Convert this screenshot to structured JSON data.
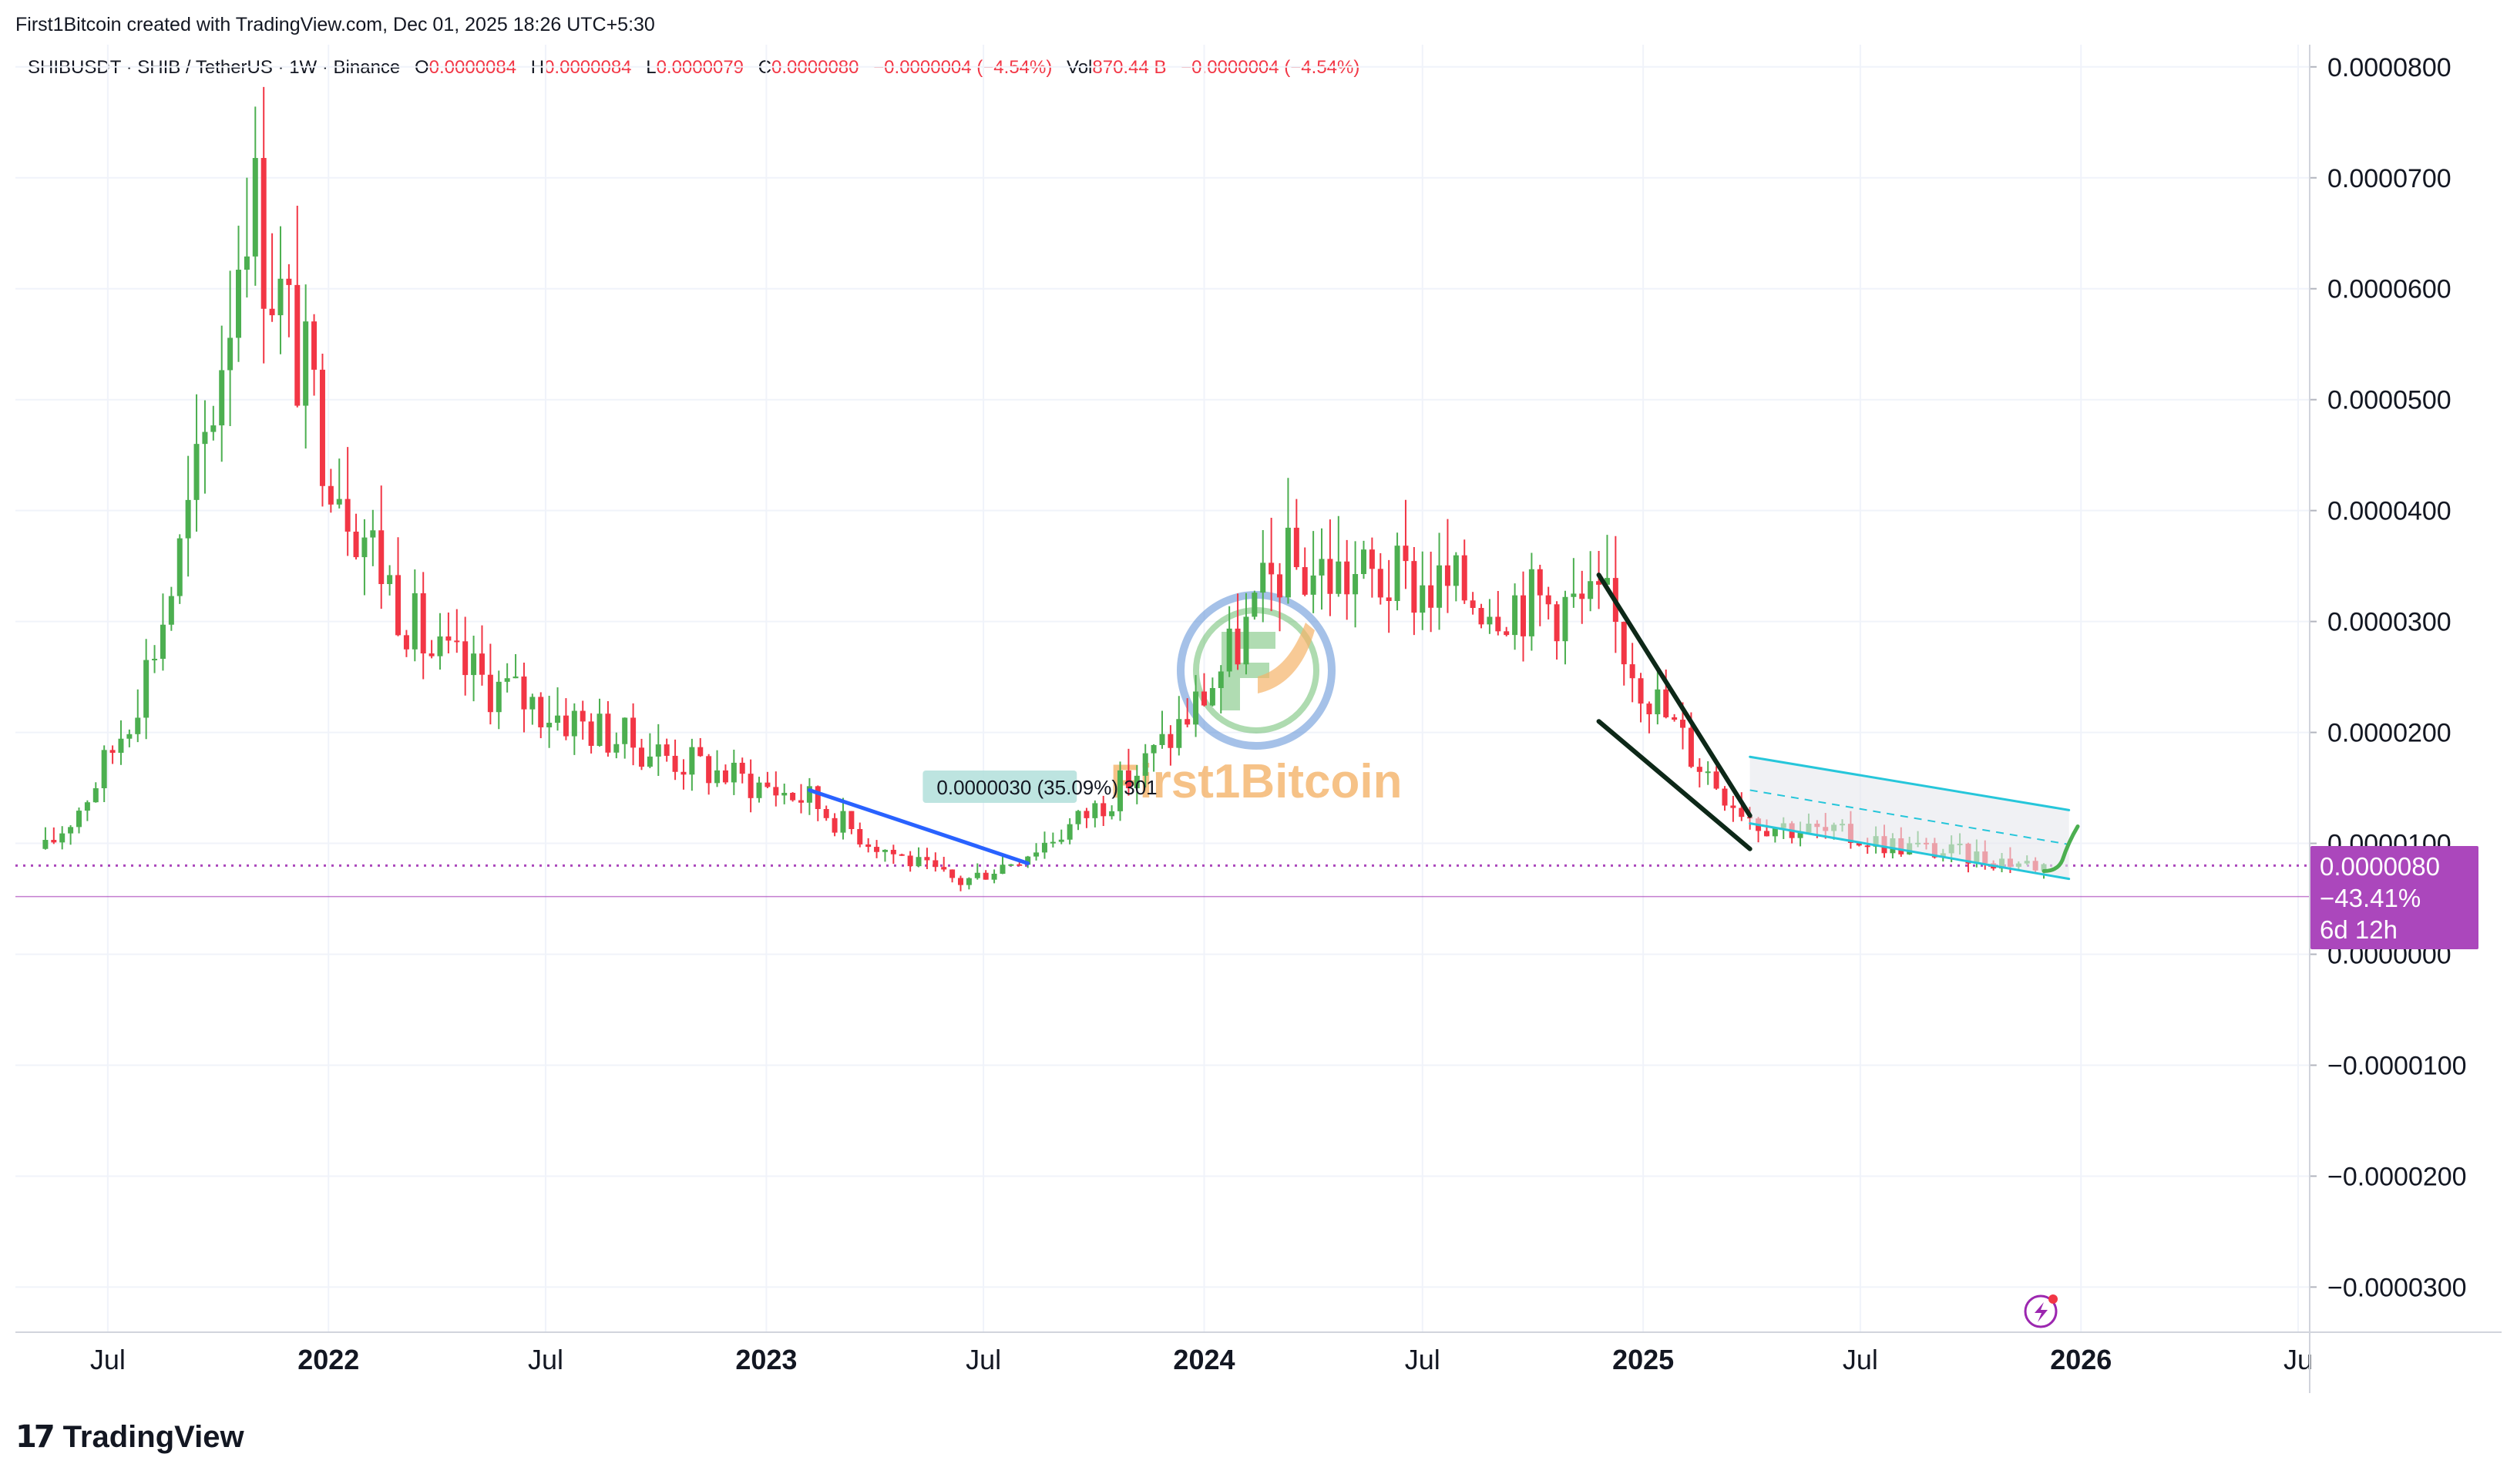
{
  "credit": "First1Bitcoin created with TradingView.com, Dec 01, 2025 18:26 UTC+5:30",
  "legend": {
    "symbol": "SHIBUSDT · SHIB / TetherUS · 1W · Binance",
    "o_label": "O",
    "o_value": "0.0000084",
    "h_label": "H",
    "h_value": "0.0000084",
    "l_label": "L",
    "l_value": "0.0000079",
    "c_label": "C",
    "c_value": "0.0000080",
    "change": "−0.0000004 (−4.54%)",
    "vol_label": "Vol",
    "vol_value": "870.44 B",
    "vol_change": "−0.0000004 (−4.54%)"
  },
  "price_tag": {
    "price": "0.0000080",
    "percent": "−43.41%",
    "countdown": "6d 12h"
  },
  "measure_label": "0.0000030 (35.09%) 301",
  "watermark_text": "First1Bitcoin",
  "branding": {
    "logo_mark": "17",
    "logo_text": "TradingView"
  },
  "colors": {
    "up": "#4caf50",
    "down": "#f23645",
    "price_line": "#ab47bc",
    "trend_blue": "#2962ff",
    "wedge": "#0d2818",
    "channel": "#26c6da",
    "channel_fill": "#e6e8ec",
    "measure_bg": "#b2dfdb",
    "watermark_orange": "#f5b36a",
    "watermark_ring": "#5b8ed6"
  },
  "chart_data": {
    "type": "candlestick",
    "title": "SHIBUSDT · SHIB / TetherUS · 1W · Binance",
    "y_ticks": [
      {
        "v": 8e-05,
        "label": "0.0000800"
      },
      {
        "v": 7e-05,
        "label": "0.0000700"
      },
      {
        "v": 6e-05,
        "label": "0.0000600"
      },
      {
        "v": 5e-05,
        "label": "0.0000500"
      },
      {
        "v": 4e-05,
        "label": "0.0000400"
      },
      {
        "v": 3e-05,
        "label": "0.0000300"
      },
      {
        "v": 2e-05,
        "label": "0.0000200"
      },
      {
        "v": 1e-05,
        "label": "0.0000100"
      },
      {
        "v": 0.0,
        "label": "0.0000000"
      },
      {
        "v": -1e-05,
        "label": "−0.0000100"
      },
      {
        "v": -2e-05,
        "label": "−0.0000200"
      },
      {
        "v": -3e-05,
        "label": "−0.0000300"
      }
    ],
    "x_ticks": [
      {
        "date": "2021-07-01",
        "label": "Jul",
        "bold": false
      },
      {
        "date": "2022-01-01",
        "label": "2022",
        "bold": true
      },
      {
        "date": "2022-07-01",
        "label": "Jul",
        "bold": false
      },
      {
        "date": "2023-01-01",
        "label": "2023",
        "bold": true
      },
      {
        "date": "2023-07-01",
        "label": "Jul",
        "bold": false
      },
      {
        "date": "2024-01-01",
        "label": "2024",
        "bold": true
      },
      {
        "date": "2024-07-01",
        "label": "Jul",
        "bold": false
      },
      {
        "date": "2025-01-01",
        "label": "2025",
        "bold": true
      },
      {
        "date": "2025-07-01",
        "label": "Jul",
        "bold": false
      },
      {
        "date": "2026-01-01",
        "label": "2026",
        "bold": true
      },
      {
        "date": "2026-07-01",
        "label": "Ju",
        "bold": false
      }
    ],
    "x_range": [
      "2021-04-15",
      "2026-07-10"
    ],
    "y_range": [
      -3.4e-05,
      8.2e-05
    ],
    "key_points": [
      {
        "date": "2021-05-10",
        "close": 9.5e-06
      },
      {
        "date": "2021-10-25",
        "close": 7e-05
      },
      {
        "date": "2022-03-28",
        "close": 2.7e-05
      },
      {
        "date": "2023-02-06",
        "close": 1.4e-05
      },
      {
        "date": "2023-06-12",
        "close": 6.5e-06
      },
      {
        "date": "2024-03-04",
        "close": 3.5e-05
      },
      {
        "date": "2024-12-02",
        "close": 3.1e-05
      },
      {
        "date": "2025-04-07",
        "close": 1.2e-05
      },
      {
        "date": "2025-12-01",
        "close": 8e-06
      }
    ],
    "current_price": 8e-06,
    "low_reference": 5.2e-06,
    "drawings": {
      "trendline_2023": [
        {
          "date": "2023-02-06",
          "y": 1.48e-05
        },
        {
          "date": "2023-08-07",
          "y": 8.2e-06
        }
      ],
      "wedge_upper": [
        {
          "date": "2024-11-25",
          "y": 3.42e-05
        },
        {
          "date": "2025-03-31",
          "y": 1.25e-05
        }
      ],
      "wedge_lower": [
        {
          "date": "2024-11-25",
          "y": 2.1e-05
        },
        {
          "date": "2025-03-31",
          "y": 9.5e-06
        }
      ],
      "channel_upper": [
        {
          "date": "2025-03-31",
          "y": 1.78e-05
        },
        {
          "date": "2025-12-22",
          "y": 1.3e-05
        }
      ],
      "channel_lower": [
        {
          "date": "2025-03-31",
          "y": 1.18e-05
        },
        {
          "date": "2025-12-22",
          "y": 6.8e-06
        }
      ],
      "measure_box": {
        "start": "2023-06-19",
        "end": "2023-09-04",
        "label": "0.0000030 (35.09%) 301"
      }
    }
  }
}
